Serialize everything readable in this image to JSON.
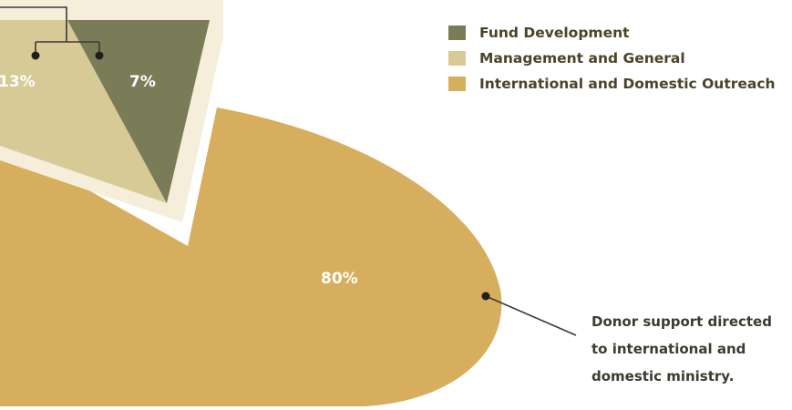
{
  "chart_data": {
    "type": "pie",
    "slices": [
      {
        "label": "Fund Development",
        "value": 7,
        "value_label": "7%",
        "color": "#7a7c57"
      },
      {
        "label": "Management and General",
        "value": 13,
        "value_label": "13%",
        "color": "#d7ca97"
      },
      {
        "label": "International and Domestic Outreach",
        "value": 80,
        "value_label": "80%",
        "color": "#d6ae5e"
      }
    ],
    "legend_position": "top-right",
    "annotation": [
      "Donor support directed",
      "to international and",
      "domestic ministry."
    ]
  },
  "colors": {
    "text": "#4a4427",
    "connector": "#3a3a3a",
    "frame": "#f4eedb"
  }
}
